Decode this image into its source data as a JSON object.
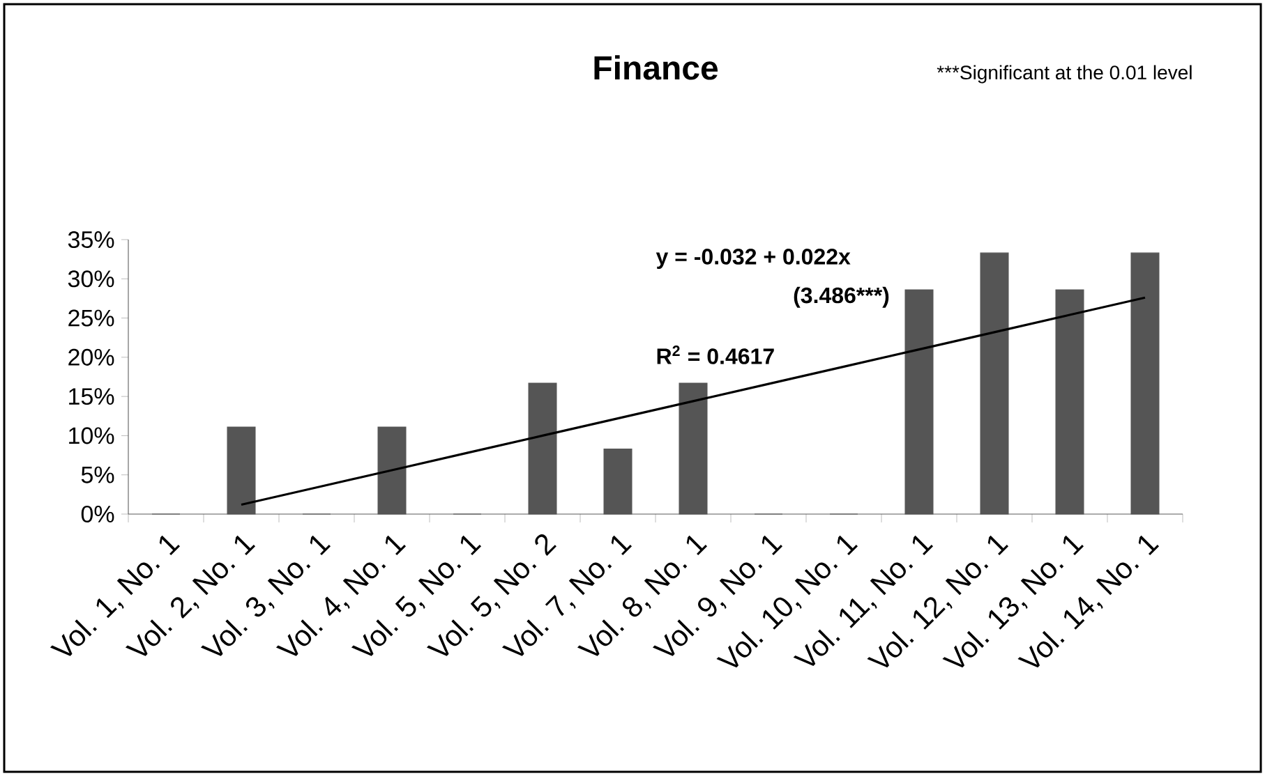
{
  "chart_data": {
    "type": "bar",
    "title": "Finance",
    "categories": [
      "Vol. 1, No. 1",
      "Vol. 2, No. 1",
      "Vol. 3, No. 1",
      "Vol. 4, No. 1",
      "Vol. 5, No. 1",
      "Vol. 5, No. 2",
      "Vol. 7, No. 1",
      "Vol. 8, No. 1",
      "Vol. 9, No. 1",
      "Vol. 10, No. 1",
      "Vol. 11, No. 1",
      "Vol. 12, No. 1",
      "Vol. 13, No. 1",
      "Vol. 14, No. 1"
    ],
    "series": [
      {
        "color": "#555555",
        "values": [
          0,
          11.1,
          0,
          11.1,
          0,
          16.7,
          8.3,
          16.7,
          0,
          0,
          28.6,
          33.3,
          28.6,
          33.3
        ]
      },
      {
        "type": "line",
        "color": "#000000",
        "values": [
          null,
          1.2,
          3.4,
          5.6,
          7.8,
          10.0,
          12.2,
          14.4,
          16.6,
          18.8,
          21.0,
          23.2,
          25.4,
          27.6
        ]
      }
    ],
    "ylim": [
      0,
      35
    ],
    "yticks": [
      {
        "value": 0,
        "label": "0%"
      },
      {
        "value": 5,
        "label": "5%"
      },
      {
        "value": 10,
        "label": "10%"
      },
      {
        "value": 15,
        "label": "15%"
      },
      {
        "value": 20,
        "label": "20%"
      },
      {
        "value": 25,
        "label": "25%"
      },
      {
        "value": 30,
        "label": "30%"
      },
      {
        "value": 35,
        "label": "35%"
      }
    ],
    "annotations": [
      "***Significant at the 0.01 level",
      "y = -0.032 + 0.022x",
      "(3.486***)",
      "R$^{2}$ = 0.4617"
    ],
    "grid": false
  }
}
